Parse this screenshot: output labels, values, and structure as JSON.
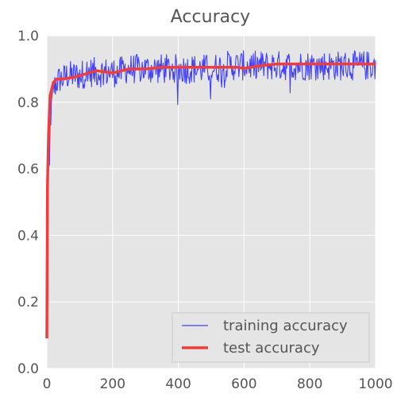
{
  "chart_data": {
    "type": "line",
    "title": "Accuracy",
    "xlabel": "",
    "ylabel": "",
    "xlim": [
      0,
      1000
    ],
    "ylim": [
      0.0,
      1.0
    ],
    "x_ticks": [
      "0",
      "200",
      "400",
      "600",
      "800",
      "1000"
    ],
    "y_ticks": [
      "0.0",
      "0.2",
      "0.4",
      "0.6",
      "0.8",
      "1.0"
    ],
    "grid": true,
    "legend_position": "lower-right",
    "series": [
      {
        "name": "training accuracy",
        "color": "#4040ff",
        "noisy": true,
        "x": [
          0,
          2,
          4,
          6,
          8,
          10,
          15,
          20,
          30,
          40,
          50,
          60,
          80,
          100,
          120,
          140,
          150,
          160,
          180,
          200,
          210,
          220,
          240,
          260,
          300,
          350,
          400,
          450,
          500,
          550,
          580,
          600,
          650,
          700,
          750,
          800,
          850,
          900,
          950,
          1000
        ],
        "y": [
          0.1,
          0.55,
          0.7,
          0.65,
          0.6,
          0.72,
          0.8,
          0.84,
          0.86,
          0.87,
          0.87,
          0.88,
          0.88,
          0.88,
          0.89,
          0.89,
          0.89,
          0.89,
          0.89,
          0.89,
          0.89,
          0.89,
          0.9,
          0.9,
          0.9,
          0.9,
          0.9,
          0.9,
          0.9,
          0.91,
          0.91,
          0.91,
          0.91,
          0.91,
          0.91,
          0.91,
          0.91,
          0.91,
          0.91,
          0.91
        ]
      },
      {
        "name": "test accuracy",
        "color": "#f03c3c",
        "noisy": false,
        "x": [
          0,
          2,
          5,
          10,
          20,
          30,
          50,
          80,
          100,
          150,
          200,
          250,
          300,
          350,
          400,
          450,
          500,
          550,
          580,
          600,
          650,
          700,
          750,
          800,
          850,
          900,
          950,
          1000
        ],
        "y": [
          0.09,
          0.55,
          0.7,
          0.82,
          0.86,
          0.87,
          0.87,
          0.875,
          0.88,
          0.895,
          0.888,
          0.9,
          0.9,
          0.905,
          0.905,
          0.905,
          0.905,
          0.905,
          0.905,
          0.902,
          0.91,
          0.915,
          0.915,
          0.915,
          0.915,
          0.915,
          0.915,
          0.915
        ]
      }
    ]
  },
  "colors": {
    "plot_background": "#e5e5e5",
    "grid": "#ffffff",
    "text": "#555555"
  }
}
